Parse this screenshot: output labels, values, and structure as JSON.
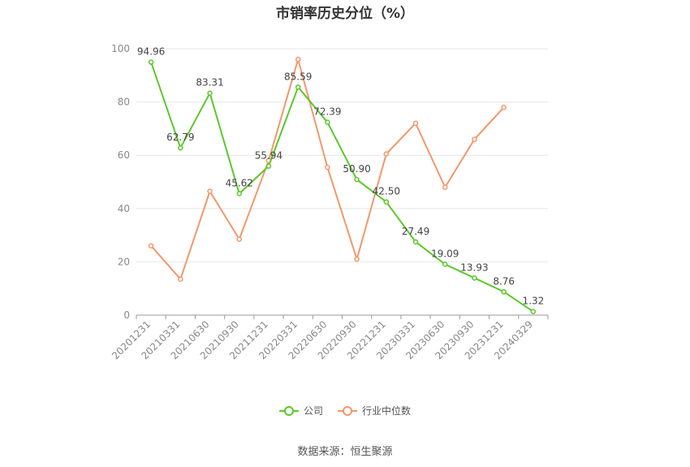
{
  "chart_data": {
    "type": "line",
    "title": "市销率历史分位（%）",
    "categories": [
      "20201231",
      "20210331",
      "20210630",
      "20210930",
      "20211231",
      "20220331",
      "20220630",
      "20220930",
      "20221231",
      "20230331",
      "20230630",
      "20230930",
      "20231231",
      "20240329"
    ],
    "ylim": [
      0,
      100
    ],
    "yticks": [
      0,
      20,
      40,
      60,
      80,
      100
    ],
    "grid": true,
    "legend_position": "bottom",
    "series": [
      {
        "name": "公司",
        "color": "#5cc72d",
        "values": [
          94.96,
          62.79,
          83.31,
          45.62,
          55.94,
          85.59,
          72.39,
          50.9,
          42.5,
          27.49,
          19.09,
          13.93,
          8.76,
          1.32
        ],
        "labels": [
          "94.96",
          "62.79",
          "83.31",
          "45.62",
          "55.94",
          "85.59",
          "72.39",
          "50.90",
          "42.50",
          "27.49",
          "19.09",
          "13.93",
          "8.76",
          "1.32"
        ]
      },
      {
        "name": "行业中位数",
        "color": "#f4976c",
        "values": [
          26,
          13.5,
          46.5,
          28.5,
          58,
          96,
          55.5,
          21,
          60.5,
          72,
          48,
          66,
          78,
          null
        ]
      }
    ],
    "source": "数据来源：恒生聚源"
  }
}
